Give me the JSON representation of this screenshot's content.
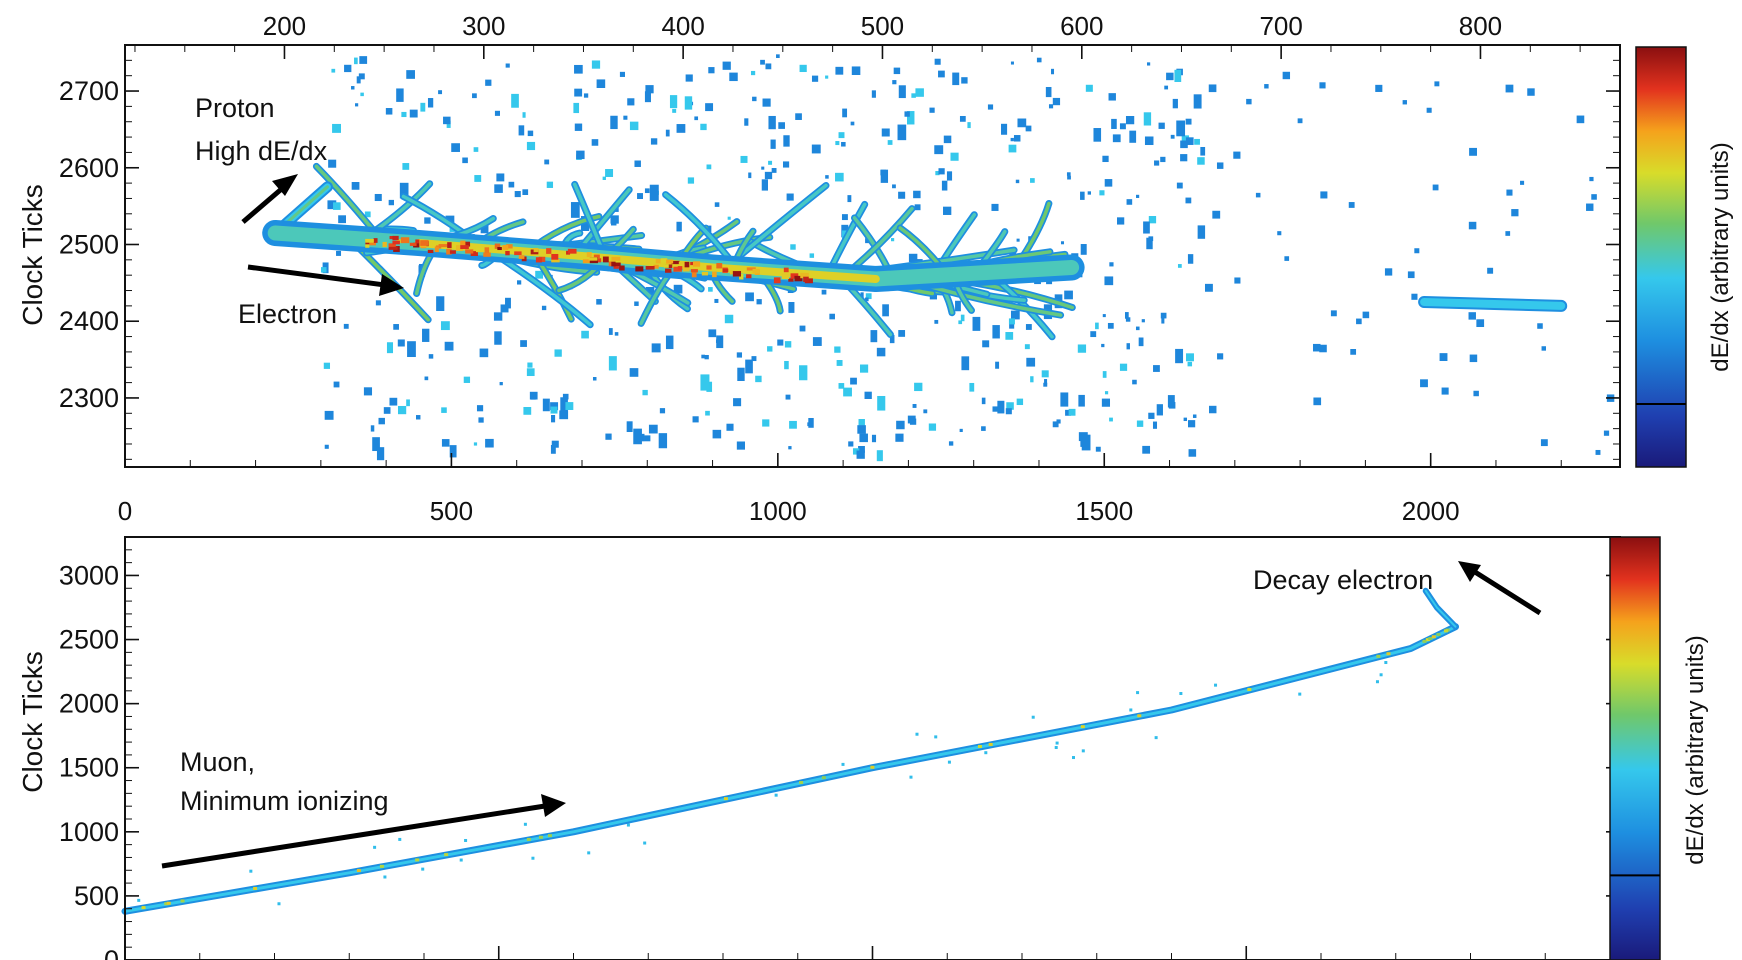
{
  "chart_data": [
    {
      "type": "heatmap",
      "title": "",
      "xlabel": "",
      "ylabel": "Clock Ticks",
      "top_axis_ticks": [
        200,
        300,
        400,
        500,
        600,
        700,
        800
      ],
      "top_axis_range": [
        120,
        870
      ],
      "xlim": [
        0,
        2290
      ],
      "bottom_axis_ticks": [
        0,
        500,
        1000,
        1500,
        2000
      ],
      "ylim": [
        2210,
        2760
      ],
      "yticks": [
        2300,
        2400,
        2500,
        2600,
        2700
      ],
      "colorbar_label": "dE/dx (arbitrary units)",
      "colorbar_marker": 0.15,
      "annotations": [
        {
          "text": "Proton",
          "x": 110,
          "y": 2690
        },
        {
          "text": "High dE/dx",
          "x": 110,
          "y": 2630
        },
        {
          "text": "Electron",
          "x": 190,
          "y": 2400
        }
      ],
      "tracks": [
        {
          "name": "proton",
          "points": [
            [
              230,
              2515
            ],
            [
              310,
              2575
            ]
          ],
          "intensity": 0.55
        },
        {
          "name": "electron-shower-core",
          "points": [
            [
              230,
              2515
            ],
            [
              450,
              2502
            ],
            [
              700,
              2485
            ],
            [
              900,
              2470
            ],
            [
              1150,
              2455
            ],
            [
              1450,
              2470
            ]
          ],
          "intensity": 0.85
        },
        {
          "name": "far-track",
          "points": [
            [
              1990,
              2425
            ],
            [
              2200,
              2420
            ]
          ],
          "intensity": 0.25
        }
      ]
    },
    {
      "type": "heatmap",
      "title": "",
      "xlabel": "",
      "ylabel": "Clock Ticks",
      "xlim": [
        0,
        2000
      ],
      "ylim": [
        0,
        3300
      ],
      "yticks": [
        0,
        500,
        1000,
        1500,
        2000,
        2500,
        3000
      ],
      "colorbar_label": "dE/dx (arbitrary units)",
      "colorbar_marker": 0.2,
      "annotations": [
        {
          "text": "Muon,",
          "x": 80,
          "y": 1560
        },
        {
          "text": "Minimum ionizing",
          "x": 80,
          "y": 1230
        },
        {
          "text": "Decay electron",
          "x": 1750,
          "y": 2900
        }
      ],
      "tracks": [
        {
          "name": "muon",
          "points": [
            [
              0,
              380
            ],
            [
              300,
              680
            ],
            [
              600,
              1000
            ],
            [
              1000,
              1500
            ],
            [
              1400,
              1950
            ],
            [
              1720,
              2430
            ],
            [
              1780,
              2600
            ]
          ],
          "intensity": 0.3
        },
        {
          "name": "decay-electron",
          "points": [
            [
              1780,
              2600
            ],
            [
              1755,
              2750
            ],
            [
              1740,
              2880
            ]
          ],
          "intensity": 0.35
        }
      ]
    }
  ]
}
